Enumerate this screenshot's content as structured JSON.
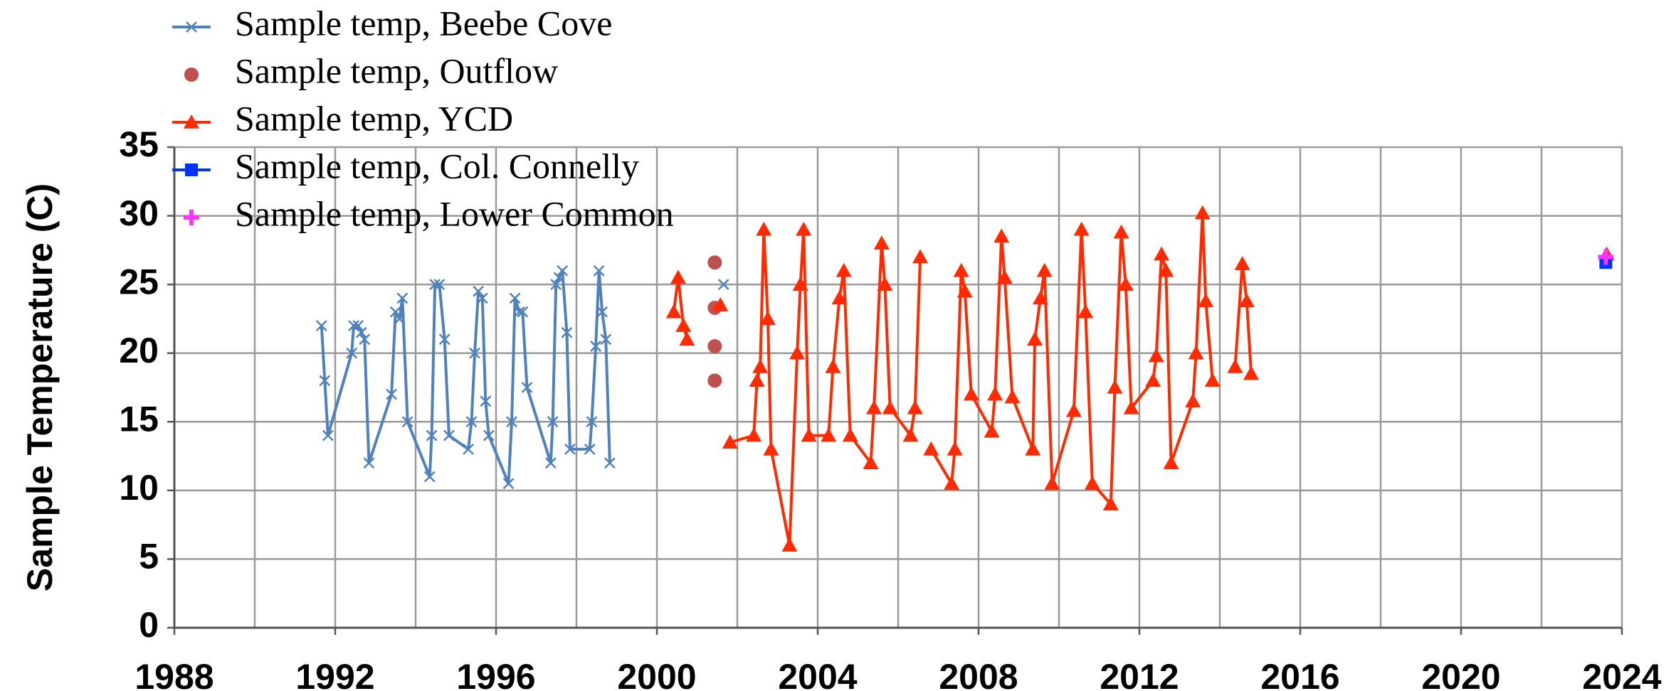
{
  "chart_data": {
    "type": "line",
    "y_label": "Sample Temperature (C)",
    "xlim": [
      1988,
      2024
    ],
    "xticks": [
      1988,
      1992,
      1996,
      2000,
      2004,
      2008,
      2012,
      2016,
      2020,
      2024
    ],
    "x_minor_ticks": [
      1990,
      1994,
      1998,
      2002,
      2006,
      2010,
      2014,
      2018,
      2022
    ],
    "ylim": [
      0,
      35
    ],
    "yticks": [
      0,
      5,
      10,
      15,
      20,
      25,
      30,
      35
    ],
    "grid": true,
    "legend": "top-left",
    "series": [
      {
        "name": "Sample temp, Beebe Cove",
        "color": "#4f81bd",
        "marker": "x",
        "line": true,
        "x": [
          1991.66,
          1991.74,
          1991.82,
          1992.41,
          1992.46,
          1992.57,
          1992.65,
          1992.73,
          1992.84,
          1993.4,
          1993.5,
          1993.6,
          1993.67,
          1993.8,
          1994.35,
          1994.4,
          1994.48,
          1994.59,
          1994.72,
          1994.83,
          1995.31,
          1995.39,
          1995.47,
          1995.56,
          1995.66,
          1995.74,
          1995.82,
          1996.31,
          1996.39,
          1996.47,
          1996.58,
          1996.66,
          1996.77,
          1997.36,
          1997.41,
          1997.49,
          1997.57,
          1997.65,
          1997.76,
          1997.84,
          1998.33,
          1998.38,
          1998.48,
          1998.56,
          1998.64,
          1998.73,
          1998.83,
          null,
          2001.66
        ],
        "values": [
          22,
          18,
          14,
          20,
          22,
          22,
          21.5,
          21,
          12,
          17,
          23,
          22.5,
          24,
          15,
          11,
          14,
          25,
          25,
          21,
          14,
          13,
          15,
          20,
          24.5,
          24,
          16.5,
          14,
          10.5,
          15,
          24,
          23,
          23,
          17.5,
          12,
          15,
          25,
          25.5,
          26,
          21.5,
          13,
          13,
          15,
          20.5,
          26,
          23,
          21,
          12,
          null,
          25
        ]
      },
      {
        "name": "Sample temp, Outflow",
        "color": "#c0504d",
        "marker": "circle",
        "line": false,
        "x": [
          2001.44,
          2001.44,
          2001.44,
          2001.44
        ],
        "values": [
          26.6,
          23.3,
          20.5,
          18
        ]
      },
      {
        "name": "Sample temp, YCD",
        "color": "#ff2a00",
        "marker": "triangle",
        "line": true,
        "x": [
          2000.42,
          2000.53,
          2000.66,
          2000.75,
          null,
          2001.58,
          null,
          2001.82,
          2002.41,
          2002.49,
          2002.57,
          2002.66,
          2002.76,
          2002.84,
          2003.3,
          2003.49,
          2003.57,
          2003.65,
          2003.78,
          2004.27,
          2004.38,
          2004.54,
          2004.65,
          2004.81,
          2005.32,
          2005.4,
          2005.59,
          2005.67,
          2005.8,
          2006.31,
          2006.42,
          2006.55,
          null,
          2006.82,
          2007.33,
          2007.41,
          2007.57,
          2007.66,
          2007.82,
          2008.33,
          2008.41,
          2008.57,
          2008.65,
          2008.84,
          2009.35,
          2009.4,
          2009.54,
          2009.64,
          2009.83,
          2010.37,
          2010.56,
          2010.66,
          2010.83,
          2011.29,
          2011.39,
          2011.55,
          2011.66,
          2011.8,
          2012.34,
          2012.42,
          2012.55,
          2012.66,
          2012.79,
          2013.33,
          2013.41,
          2013.57,
          2013.65,
          2013.82,
          null,
          2014.38,
          2014.56,
          2014.67,
          2014.78,
          null,
          2023.62
        ],
        "values": [
          23,
          25.5,
          22,
          21,
          null,
          23.5,
          null,
          13.5,
          14,
          18,
          19,
          29,
          22.5,
          13,
          6,
          20,
          25,
          29,
          14,
          14,
          19,
          24,
          26,
          14,
          12,
          16,
          28,
          25,
          16,
          14,
          16,
          27,
          null,
          13,
          10.5,
          13,
          26,
          24.5,
          17,
          14.3,
          17,
          28.5,
          25.5,
          16.8,
          13,
          21,
          24,
          26,
          10.5,
          15.8,
          29,
          23,
          10.5,
          9,
          17.5,
          28.8,
          25,
          16,
          18,
          19.8,
          27.2,
          26,
          12,
          16.5,
          20,
          30.2,
          23.8,
          18,
          null,
          19,
          26.5,
          23.8,
          18.5,
          null,
          27.2
        ]
      },
      {
        "name": "Sample temp,  Col. Connelly",
        "color": "#0033ff",
        "marker": "square",
        "line": true,
        "x": [
          2023.6
        ],
        "values": [
          26.6
        ]
      },
      {
        "name": "Sample temp,  Lower Common",
        "color": "#ff33ff",
        "marker": "plus",
        "line": false,
        "x": [
          2023.6
        ],
        "values": [
          27
        ]
      }
    ]
  }
}
